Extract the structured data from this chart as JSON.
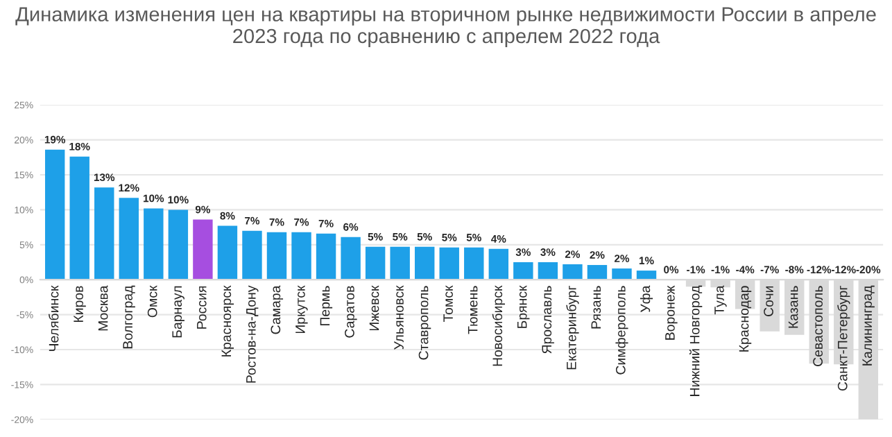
{
  "chart_data": {
    "type": "bar",
    "title": "Динамика изменения цен на квартиры на вторичном рынке недвижимости России в апреле 2023 года по сравнению с апрелем 2022 года",
    "categories": [
      "Челябинск",
      "Киров",
      "Москва",
      "Волгоград",
      "Омск",
      "Барнаул",
      "Россия",
      "Красноярск",
      "Ростов-на-Дону",
      "Самара",
      "Иркутск",
      "Пермь",
      "Саратов",
      "Ижевск",
      "Ульяновск",
      "Ставрополь",
      "Томск",
      "Тюмень",
      "Новосибирск",
      "Брянск",
      "Ярославль",
      "Екатеринбург",
      "Рязань",
      "Симферополь",
      "Уфа",
      "Воронеж",
      "Нижний Новгород",
      "Тула",
      "Краснодар",
      "Сочи",
      "Казань",
      "Севастополь",
      "Санкт-Петербург",
      "Калининград"
    ],
    "values": [
      18.6,
      17.6,
      13.2,
      11.7,
      10.2,
      10.0,
      8.6,
      7.7,
      7.0,
      6.8,
      6.8,
      6.6,
      6.1,
      4.7,
      4.7,
      4.7,
      4.6,
      4.6,
      4.4,
      2.5,
      2.5,
      2.2,
      2.1,
      1.6,
      1.3,
      0.0,
      -1.0,
      -1.1,
      -4.2,
      -7.4,
      -7.9,
      -12.0,
      -12.1,
      -20.0
    ],
    "value_labels": [
      "19%",
      "18%",
      "13%",
      "12%",
      "10%",
      "10%",
      "9%",
      "8%",
      "7%",
      "7%",
      "7%",
      "7%",
      "6%",
      "5%",
      "5%",
      "5%",
      "5%",
      "5%",
      "4%",
      "3%",
      "3%",
      "2%",
      "2%",
      "2%",
      "1%",
      "0%",
      "-1%",
      "-1%",
      "-4%",
      "-7%",
      "-8%",
      "-12%",
      "-12%",
      "-20%"
    ],
    "colors": [
      "#1ea0e8",
      "#1ea0e8",
      "#1ea0e8",
      "#1ea0e8",
      "#1ea0e8",
      "#1ea0e8",
      "#a64ee0",
      "#1ea0e8",
      "#1ea0e8",
      "#1ea0e8",
      "#1ea0e8",
      "#1ea0e8",
      "#1ea0e8",
      "#1ea0e8",
      "#1ea0e8",
      "#1ea0e8",
      "#1ea0e8",
      "#1ea0e8",
      "#1ea0e8",
      "#1ea0e8",
      "#1ea0e8",
      "#1ea0e8",
      "#1ea0e8",
      "#1ea0e8",
      "#1ea0e8",
      "#1ea0e8",
      "#d9d9d9",
      "#d9d9d9",
      "#d9d9d9",
      "#d9d9d9",
      "#d9d9d9",
      "#d9d9d9",
      "#d9d9d9",
      "#d9d9d9"
    ],
    "ylim": [
      -20,
      25
    ],
    "yticks": [
      {
        "value": -20,
        "label": "-20%"
      },
      {
        "value": -15,
        "label": "-15%"
      },
      {
        "value": -10,
        "label": "-10%"
      },
      {
        "value": -5,
        "label": "-5%"
      },
      {
        "value": 0,
        "label": "0%"
      },
      {
        "value": 5,
        "label": "5%"
      },
      {
        "value": 10,
        "label": "10%"
      },
      {
        "value": 15,
        "label": "15%"
      },
      {
        "value": 20,
        "label": "20%"
      },
      {
        "value": 25,
        "label": "25%"
      }
    ],
    "grid": "y",
    "legend": false
  }
}
